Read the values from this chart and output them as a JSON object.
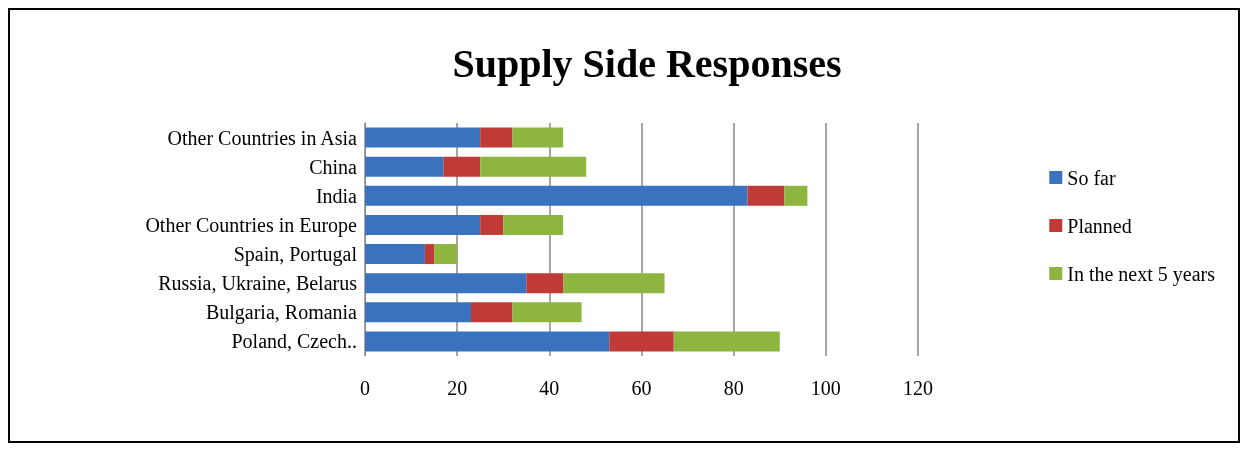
{
  "chart_data": {
    "type": "bar",
    "title": "Supply Side Responses",
    "orientation": "horizontal",
    "stacked": true,
    "categories": [
      "Other Countries in Asia",
      "China",
      "India",
      "Other Countries in Europe",
      "Spain, Portugal",
      "Russia, Ukraine, Belarus",
      "Bulgaria, Romania",
      "Poland, Czech.."
    ],
    "series": [
      {
        "name": "So far",
        "color": "#3a72c0",
        "values": [
          25,
          17,
          83,
          25,
          13,
          35,
          23,
          53
        ]
      },
      {
        "name": "Planned",
        "color": "#c03a37",
        "values": [
          7,
          8,
          8,
          5,
          2,
          8,
          9,
          14
        ]
      },
      {
        "name": "In the next 5 years",
        "color": "#8db53f",
        "values": [
          11,
          23,
          5,
          13,
          5,
          22,
          15,
          23
        ]
      }
    ],
    "xlim": [
      0,
      120
    ],
    "xticks": [
      0,
      20,
      40,
      60,
      80,
      100,
      120
    ],
    "grid": "x",
    "legend": "right"
  }
}
